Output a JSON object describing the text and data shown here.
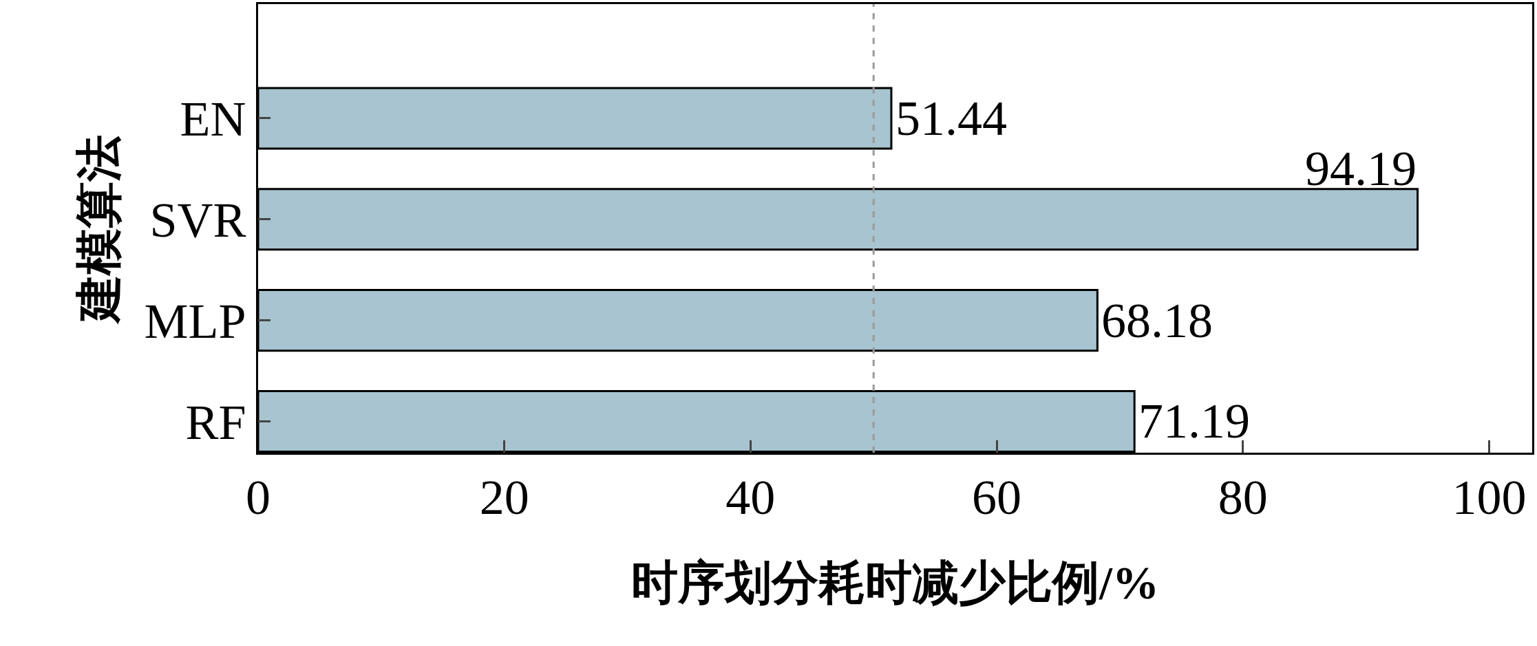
{
  "chart_data": {
    "type": "bar",
    "orientation": "horizontal",
    "xlabel": "时序划分耗时减少比例/%",
    "ylabel": "建模算法",
    "categories": [
      "EN",
      "SVR",
      "MLP",
      "RF"
    ],
    "values": [
      51.44,
      94.19,
      68.18,
      71.19
    ],
    "color": "#a7c4d0",
    "xlim": [
      0,
      103.5
    ],
    "xticks": [
      0,
      20,
      40,
      60,
      80,
      100
    ],
    "ref_lines": [
      {
        "axis": "x",
        "value": 50,
        "color": "#999999",
        "line_style": "dashed"
      }
    ],
    "data_labels": true,
    "legend": false
  }
}
